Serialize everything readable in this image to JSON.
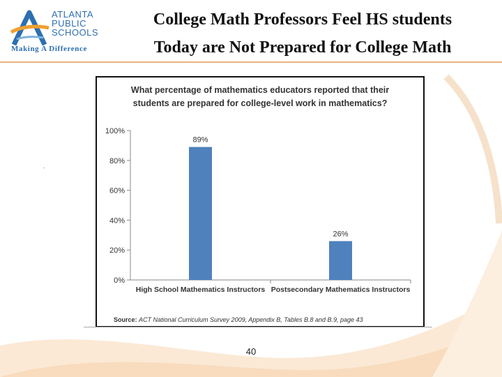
{
  "logo": {
    "name_lines": [
      "ATLANTA",
      "PUBLIC",
      "SCHOOLS"
    ],
    "tagline": "Making A Difference"
  },
  "title_lines": [
    "College Math Professors Feel HS students",
    "Today are Not Prepared for College Math"
  ],
  "colors": {
    "bar": "#4f81bd",
    "accent": "#e8b47a",
    "logo_blue": "#2d6fb0",
    "logo_orange": "#f0a030"
  },
  "chart_data": {
    "type": "bar",
    "title_lines": [
      "What percentage of mathematics educators reported that their",
      "students are prepared for college-level work in mathematics?"
    ],
    "categories": [
      "High School Mathematics Instructors",
      "Postsecondary Mathematics Instructors"
    ],
    "values": [
      89,
      26
    ],
    "data_labels": [
      "89%",
      "26%"
    ],
    "ylim": [
      0,
      100
    ],
    "yticks": [
      0,
      20,
      40,
      60,
      80,
      100
    ],
    "ytick_labels": [
      "0%",
      "20%",
      "40%",
      "60%",
      "80%",
      "100%"
    ],
    "grid": false,
    "source_label": "Source:",
    "source_text": "ACT National Curriculum Survey 2009, Appendix B, Tables B.8 and B.9, page 43"
  },
  "page_number": "40",
  "stray_mark": "."
}
